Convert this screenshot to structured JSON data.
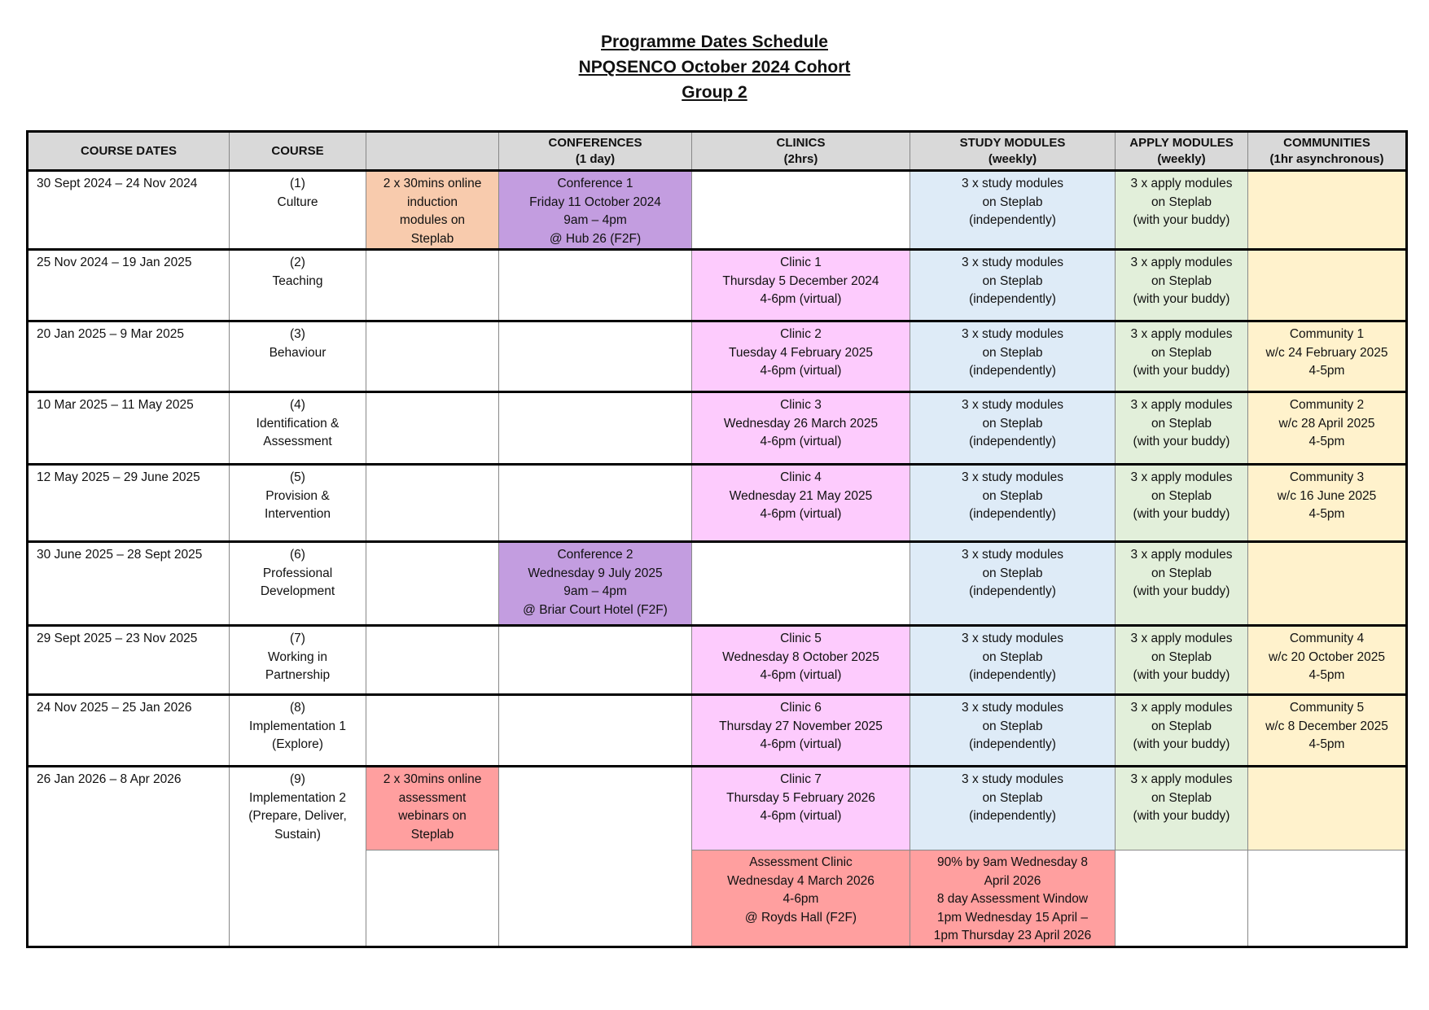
{
  "title": [
    "Programme Dates Schedule",
    "NPQSENCO October 2024 Cohort",
    "Group 2"
  ],
  "colors": {
    "header": "#d9d9d9",
    "induction": "#f8cbad",
    "conference": "#c39de0",
    "clinic": "#fdcbfd",
    "study": "#deebf7",
    "apply": "#e2efda",
    "community": "#fff2cc",
    "assessment": "#ff9f9f"
  },
  "headers": [
    [
      "COURSE DATES"
    ],
    [
      "COURSE"
    ],
    [],
    [
      "CONFERENCES",
      "(1 day)"
    ],
    [
      "CLINICS",
      "(2hrs)"
    ],
    [
      "STUDY MODULES",
      "(weekly)"
    ],
    [
      "APPLY MODULES",
      "(weekly)"
    ],
    [
      "COMMUNITIES",
      "(1hr asynchronous)"
    ]
  ],
  "rows": [
    {
      "dates": [
        "30 Sept 2024 – 24 Nov 2024"
      ],
      "course": [
        "(1)",
        "Culture"
      ],
      "extra": [
        "2 x 30mins online",
        "induction",
        "modules on",
        "Steplab"
      ],
      "conference": [
        "Conference 1",
        "Friday 11 October 2024",
        "9am – 4pm",
        "@ Hub 26 (F2F)"
      ],
      "clinic": [],
      "study": [
        "3 x study modules",
        "on Steplab",
        "(independently)"
      ],
      "apply": [
        "3 x apply modules",
        "on Steplab",
        "(with your buddy)"
      ],
      "community": []
    },
    {
      "dates": [
        "25 Nov 2024 – 19 Jan 2025"
      ],
      "course": [
        "(2)",
        "Teaching"
      ],
      "extra": [],
      "conference": [],
      "clinic": [
        "Clinic 1",
        "Thursday 5 December 2024",
        "4-6pm (virtual)"
      ],
      "study": [
        "3 x study modules",
        "on Steplab",
        "(independently)"
      ],
      "apply": [
        "3 x apply modules",
        "on Steplab",
        "(with your buddy)"
      ],
      "community": []
    },
    {
      "dates": [
        "20 Jan 2025 – 9 Mar 2025"
      ],
      "course": [
        "(3)",
        "Behaviour"
      ],
      "extra": [],
      "conference": [],
      "clinic": [
        "Clinic 2",
        "Tuesday 4 February 2025",
        "4-6pm (virtual)"
      ],
      "study": [
        "3 x study modules",
        "on Steplab",
        "(independently)"
      ],
      "apply": [
        "3 x apply modules",
        "on Steplab",
        "(with your buddy)"
      ],
      "community": [
        "Community 1",
        "w/c 24 February 2025",
        "4-5pm"
      ]
    },
    {
      "dates": [
        "10 Mar 2025 – 11 May 2025"
      ],
      "course": [
        "(4)",
        "Identification &",
        "Assessment"
      ],
      "extra": [],
      "conference": [],
      "clinic": [
        "Clinic 3",
        "Wednesday 26 March 2025",
        "4-6pm (virtual)"
      ],
      "study": [
        "3 x study modules",
        "on Steplab",
        "(independently)"
      ],
      "apply": [
        "3 x apply modules",
        "on Steplab",
        "(with your buddy)"
      ],
      "community": [
        "Community 2",
        "w/c 28 April 2025",
        "4-5pm"
      ]
    },
    {
      "dates": [
        "12 May 2025 – 29 June 2025"
      ],
      "course": [
        "(5)",
        "Provision &",
        "Intervention"
      ],
      "extra": [],
      "conference": [],
      "clinic": [
        "Clinic 4",
        "Wednesday 21 May 2025",
        "4-6pm (virtual)"
      ],
      "study": [
        "3 x study modules",
        "on Steplab",
        "(independently)"
      ],
      "apply": [
        "3 x apply modules",
        "on Steplab",
        "(with your buddy)"
      ],
      "community": [
        "Community 3",
        "w/c 16 June 2025",
        "4-5pm"
      ]
    },
    {
      "dates": [
        "30 June 2025 – 28 Sept 2025"
      ],
      "course": [
        "(6)",
        "Professional",
        "Development"
      ],
      "extra": [],
      "conference": [
        "Conference 2",
        "Wednesday 9 July 2025",
        "9am – 4pm",
        "@ Briar Court Hotel (F2F)"
      ],
      "clinic": [],
      "study": [
        "3 x study modules",
        "on Steplab",
        "(independently)"
      ],
      "apply": [
        "3 x apply modules",
        "on Steplab",
        "(with your buddy)"
      ],
      "community": []
    },
    {
      "dates": [
        "29 Sept 2025 – 23 Nov 2025"
      ],
      "course": [
        "(7)",
        "Working in",
        "Partnership"
      ],
      "extra": [],
      "conference": [],
      "clinic": [
        "Clinic 5",
        "Wednesday 8 October 2025",
        "4-6pm (virtual)"
      ],
      "study": [
        "3 x study modules",
        "on Steplab",
        "(independently)"
      ],
      "apply": [
        "3 x apply modules",
        "on Steplab",
        "(with your buddy)"
      ],
      "community": [
        "Community 4",
        "w/c 20 October 2025",
        "4-5pm"
      ]
    },
    {
      "dates": [
        "24 Nov 2025 – 25 Jan 2026"
      ],
      "course": [
        "(8)",
        "Implementation 1",
        "(Explore)"
      ],
      "extra": [],
      "conference": [],
      "clinic": [
        "Clinic 6",
        "Thursday 27 November 2025",
        "4-6pm (virtual)"
      ],
      "study": [
        "3 x study modules",
        "on Steplab",
        "(independently)"
      ],
      "apply": [
        "3 x apply modules",
        "on Steplab",
        "(with your buddy)"
      ],
      "community": [
        "Community 5",
        "w/c 8 December 2025",
        "4-5pm"
      ]
    },
    {
      "dates": [
        "26 Jan 2026 – 8 Apr 2026"
      ],
      "course": [
        "(9)",
        "Implementation 2",
        "(Prepare, Deliver,",
        "Sustain)"
      ],
      "extra": [
        "2 x 30mins online",
        "assessment",
        "webinars on",
        "Steplab"
      ],
      "conference": [],
      "clinic": [
        "Clinic 7",
        "Thursday 5 February 2026",
        "4-6pm (virtual)"
      ],
      "study": [
        "3 x study modules",
        "on Steplab",
        "(independently)"
      ],
      "apply": [
        "3 x apply modules",
        "on Steplab",
        "(with your buddy)"
      ],
      "community": []
    }
  ],
  "assessment_row": {
    "extra": [],
    "clinic": [
      "Assessment Clinic",
      "Wednesday 4 March 2026",
      "4-6pm",
      "@ Royds Hall (F2F)"
    ],
    "study": [
      "90% by 9am Wednesday 8",
      "April 2026",
      "8 day Assessment Window",
      "1pm Wednesday 15 April –",
      "1pm Thursday 23 April 2026"
    ],
    "apply": [],
    "community": []
  }
}
